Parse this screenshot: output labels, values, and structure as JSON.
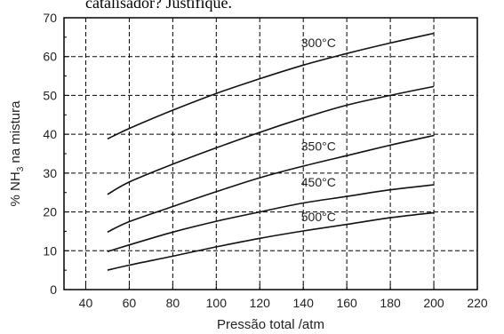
{
  "caption": "catalisador? Justifique.",
  "chart_data": {
    "type": "line",
    "xlabel": "Pressão total /atm",
    "ylabel_prefix": "% NH",
    "ylabel_sub": "3",
    "ylabel_suffix": " na mistura",
    "xlim": [
      30,
      220
    ],
    "ylim": [
      0,
      70
    ],
    "x_ticks": [
      40,
      60,
      80,
      100,
      120,
      140,
      160,
      180,
      200,
      220
    ],
    "y_ticks": [
      0,
      10,
      20,
      30,
      40,
      50,
      60,
      70
    ],
    "grid": true,
    "x": [
      50,
      60,
      80,
      100,
      120,
      140,
      160,
      180,
      200
    ],
    "series": [
      {
        "name": "300°C",
        "label_text": "300°C",
        "values": [
          38.8,
          41.5,
          46.2,
          50.5,
          54.3,
          57.8,
          60.8,
          63.5,
          66.0
        ],
        "label_at": [
          139,
          62.5
        ]
      },
      {
        "name": "",
        "label_text": "",
        "values": [
          24.5,
          27.7,
          32.3,
          36.5,
          40.5,
          44.2,
          47.5,
          50.0,
          52.3
        ],
        "label_at": null
      },
      {
        "name": "350°C",
        "label_text": "350°C",
        "values": [
          14.8,
          17.5,
          21.4,
          25.2,
          28.8,
          31.8,
          34.5,
          37.2,
          39.7
        ],
        "label_at": [
          139,
          35.8
        ]
      },
      {
        "name": "450°C",
        "label_text": "450°C",
        "values": [
          9.8,
          11.5,
          14.8,
          17.6,
          20.0,
          22.3,
          24.0,
          25.7,
          27.0
        ],
        "label_at": [
          139,
          26.5
        ]
      },
      {
        "name": "500°C",
        "label_text": "500°C",
        "values": [
          5.0,
          6.3,
          8.6,
          11.0,
          13.2,
          15.1,
          16.8,
          18.5,
          19.8
        ],
        "label_at": [
          139,
          17.6
        ]
      }
    ],
    "line_color": "#111111"
  }
}
